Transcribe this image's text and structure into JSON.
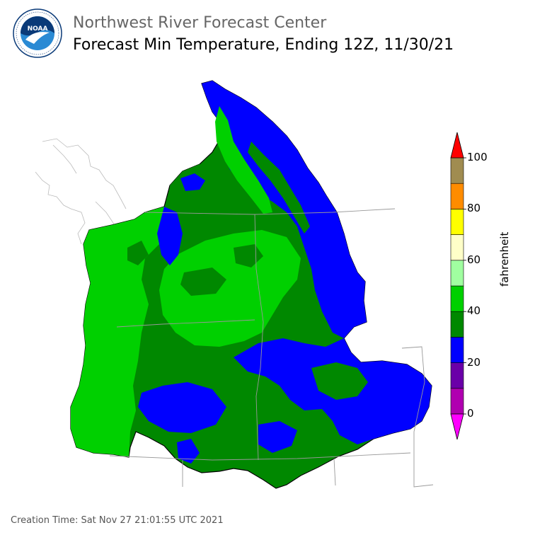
{
  "header": {
    "subtitle": "Northwest River Forecast Center",
    "title": "Forecast Min Temperature, Ending 12Z, 11/30/21"
  },
  "logo": {
    "text": "NOAA",
    "ring_text": "NATIONAL OCEANIC AND ATMOSPHERIC ADMINISTRATION · U.S. DEPARTMENT OF COMMERCE",
    "colors": {
      "sky": "#2a8ad4",
      "navy": "#0a3a78",
      "white": "#ffffff"
    }
  },
  "colorbar": {
    "unit": "fahrenheit",
    "ticks": [
      "0",
      "20",
      "40",
      "60",
      "80",
      "100"
    ],
    "bins": [
      {
        "range": "<0",
        "color": "#ff00ff"
      },
      {
        "range": "0-10",
        "color": "#b000b0"
      },
      {
        "range": "10-20",
        "color": "#6a00a8"
      },
      {
        "range": "20-30",
        "color": "#0000ff"
      },
      {
        "range": "30-40",
        "color": "#008800"
      },
      {
        "range": "40-50",
        "color": "#00d000"
      },
      {
        "range": "50-60",
        "color": "#a0ffa0"
      },
      {
        "range": "60-70",
        "color": "#ffffc8"
      },
      {
        "range": "70-80",
        "color": "#ffff00"
      },
      {
        "range": "80-90",
        "color": "#ff8c00"
      },
      {
        "range": "90-100",
        "color": "#a08c50"
      },
      {
        "range": ">100",
        "color": "#ff0000"
      }
    ]
  },
  "map": {
    "region": "Columbia River Basin and coastal Pacific Northwest",
    "colors": {
      "coast": "#00d000",
      "valley": "#00d000",
      "mid": "#008800",
      "mountain": "#0000ff",
      "outline": "#000000",
      "borders": "#999999"
    }
  },
  "footer": {
    "creation_time": "Creation Time: Sat Nov 27 21:01:55 UTC 2021"
  }
}
